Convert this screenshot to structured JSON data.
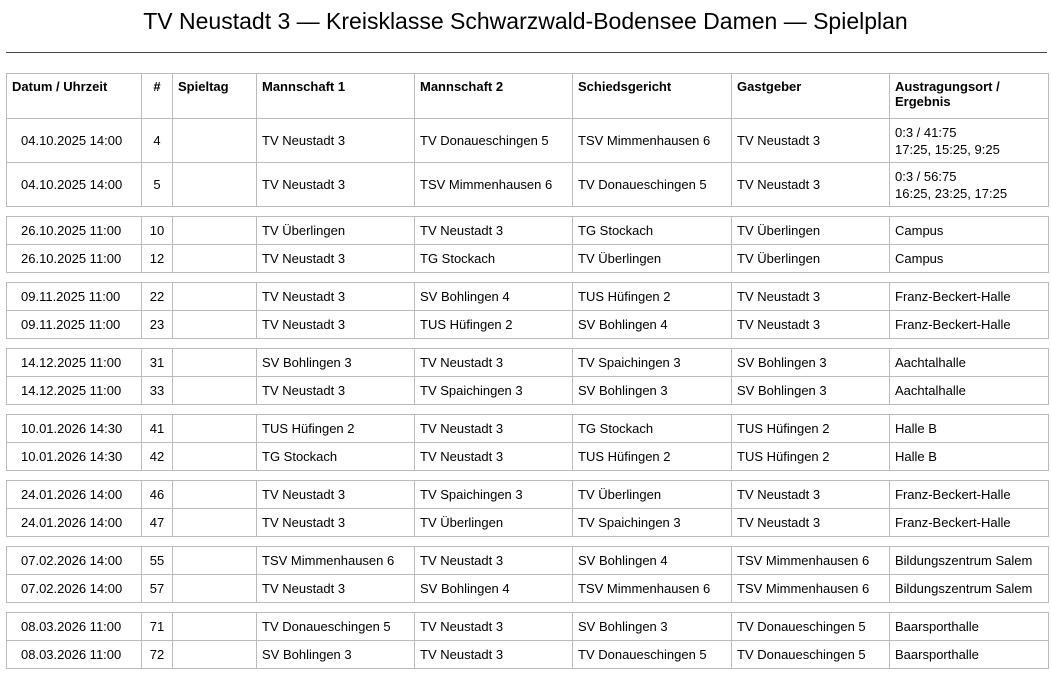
{
  "title": "TV Neustadt 3 — Kreisklasse Schwarzwald-Bodensee Damen — Spielplan",
  "headers": [
    "Datum / Uhrzeit",
    "#",
    "Spieltag",
    "Mannschaft 1",
    "Mannschaft 2",
    "Schiedsgericht",
    "Gastgeber",
    "Austragungsort / Ergebnis"
  ],
  "groups": [
    [
      [
        "04.10.2025 14:00",
        "4",
        "",
        "TV Neustadt 3",
        "TV Donaueschingen 5",
        "TSV Mimmenhausen 6",
        "TV Neustadt 3",
        "0:3 / 41:75",
        "17:25, 15:25, 9:25"
      ],
      [
        "04.10.2025 14:00",
        "5",
        "",
        "TV Neustadt 3",
        "TSV Mimmenhausen 6",
        "TV Donaueschingen 5",
        "TV Neustadt 3",
        "0:3 / 56:75",
        "16:25, 23:25, 17:25"
      ]
    ],
    [
      [
        "26.10.2025 11:00",
        "10",
        "",
        "TV Überlingen",
        "TV Neustadt 3",
        "TG Stockach",
        "TV Überlingen",
        "Campus"
      ],
      [
        "26.10.2025 11:00",
        "12",
        "",
        "TV Neustadt 3",
        "TG Stockach",
        "TV Überlingen",
        "TV Überlingen",
        "Campus"
      ]
    ],
    [
      [
        "09.11.2025 11:00",
        "22",
        "",
        "TV Neustadt 3",
        "SV Bohlingen 4",
        "TUS Hüfingen 2",
        "TV Neustadt 3",
        "Franz-Beckert-Halle"
      ],
      [
        "09.11.2025 11:00",
        "23",
        "",
        "TV Neustadt 3",
        "TUS Hüfingen 2",
        "SV Bohlingen 4",
        "TV Neustadt 3",
        "Franz-Beckert-Halle"
      ]
    ],
    [
      [
        "14.12.2025 11:00",
        "31",
        "",
        "SV Bohlingen 3",
        "TV Neustadt 3",
        "TV Spaichingen 3",
        "SV Bohlingen 3",
        "Aachtalhalle"
      ],
      [
        "14.12.2025 11:00",
        "33",
        "",
        "TV Neustadt 3",
        "TV Spaichingen 3",
        "SV Bohlingen 3",
        "SV Bohlingen 3",
        "Aachtalhalle"
      ]
    ],
    [
      [
        "10.01.2026 14:30",
        "41",
        "",
        "TUS Hüfingen 2",
        "TV Neustadt 3",
        "TG Stockach",
        "TUS Hüfingen 2",
        "Halle B"
      ],
      [
        "10.01.2026 14:30",
        "42",
        "",
        "TG Stockach",
        "TV Neustadt 3",
        "TUS Hüfingen 2",
        "TUS Hüfingen 2",
        "Halle B"
      ]
    ],
    [
      [
        "24.01.2026 14:00",
        "46",
        "",
        "TV Neustadt 3",
        "TV Spaichingen 3",
        "TV Überlingen",
        "TV Neustadt 3",
        "Franz-Beckert-Halle"
      ],
      [
        "24.01.2026 14:00",
        "47",
        "",
        "TV Neustadt 3",
        "TV Überlingen",
        "TV Spaichingen 3",
        "TV Neustadt 3",
        "Franz-Beckert-Halle"
      ]
    ],
    [
      [
        "07.02.2026 14:00",
        "55",
        "",
        "TSV Mimmenhausen 6",
        "TV Neustadt 3",
        "SV Bohlingen 4",
        "TSV Mimmenhausen 6",
        "Bildungszentrum Salem"
      ],
      [
        "07.02.2026 14:00",
        "57",
        "",
        "TV Neustadt 3",
        "SV Bohlingen 4",
        "TSV Mimmenhausen 6",
        "TSV Mimmenhausen 6",
        "Bildungszentrum Salem"
      ]
    ],
    [
      [
        "08.03.2026 11:00",
        "71",
        "",
        "TV Donaueschingen 5",
        "TV Neustadt 3",
        "SV Bohlingen 3",
        "TV Donaueschingen 5",
        "Baarsporthalle"
      ],
      [
        "08.03.2026 11:00",
        "72",
        "",
        "SV Bohlingen 3",
        "TV Neustadt 3",
        "TV Donaueschingen 5",
        "TV Donaueschingen 5",
        "Baarsporthalle"
      ]
    ]
  ]
}
